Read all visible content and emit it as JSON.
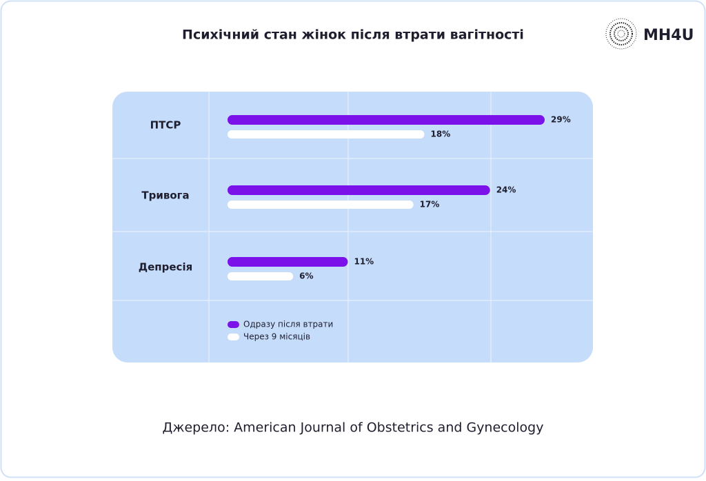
{
  "chart_data": {
    "type": "bar",
    "orientation": "horizontal",
    "title": "Психічний стан жінок після втрати вагітності",
    "categories": [
      "ПТСР",
      "Тривога",
      "Депресія"
    ],
    "series": [
      {
        "name": "Одразу після втрати",
        "color": "#7b12ea",
        "values": [
          29,
          24,
          11
        ],
        "value_labels": [
          "29%",
          "24%",
          "11%"
        ]
      },
      {
        "name": "Через 9 місяців",
        "color": "#ffffff",
        "values": [
          18,
          17,
          6
        ],
        "value_labels": [
          "18%",
          "17%",
          "6%"
        ]
      }
    ]
  },
  "source": "Джерело: American Journal of Obstetrics and Gynecology",
  "logo": "MH4U"
}
